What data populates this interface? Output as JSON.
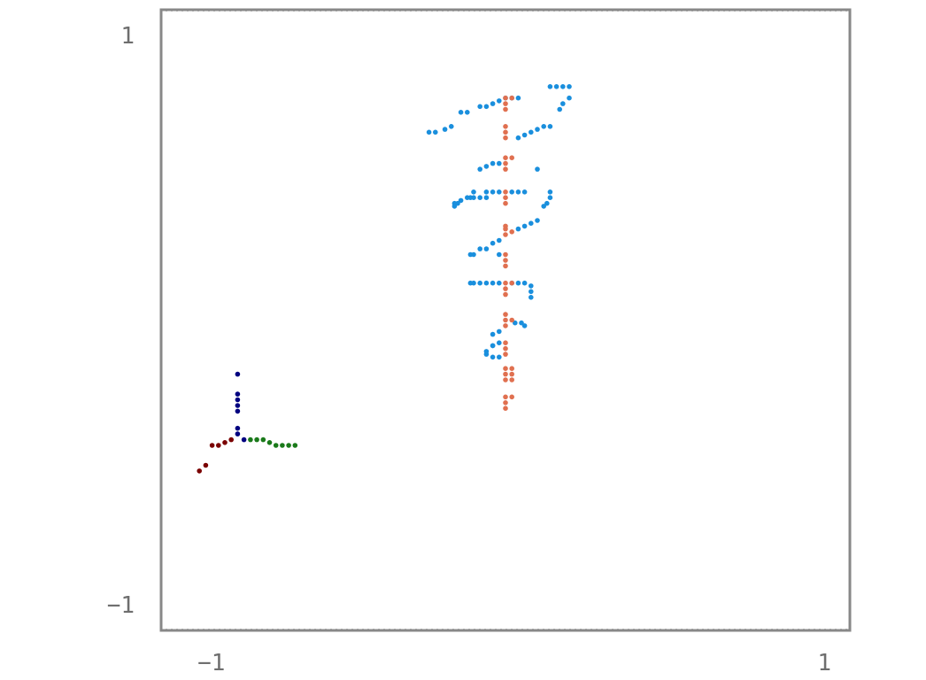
{
  "chart_data": {
    "type": "scatter",
    "title": "",
    "xlabel": "",
    "ylabel": "",
    "xlim": [
      -1.08,
      1.08
    ],
    "ylim": [
      -1.09,
      1.09
    ],
    "xticks": [
      {
        "value": -1,
        "label": "−1"
      },
      {
        "value": 1,
        "label": "1"
      }
    ],
    "yticks": [
      {
        "value": 1,
        "label": "1"
      },
      {
        "value": -1,
        "label": "−1"
      }
    ],
    "grid": false,
    "frame_color": "#888888",
    "series": [
      {
        "color": "#1a8fdd",
        "points": [
          [
            0.14,
            0.82
          ],
          [
            0.16,
            0.82
          ],
          [
            0.18,
            0.82
          ],
          [
            0.2,
            0.82
          ],
          [
            0.2,
            0.78
          ],
          [
            0.18,
            0.76
          ],
          [
            0.17,
            0.74
          ],
          [
            0.0,
            0.78
          ],
          [
            0.02,
            0.78
          ],
          [
            0.04,
            0.78
          ],
          [
            -0.02,
            0.77
          ],
          [
            -0.04,
            0.76
          ],
          [
            -0.06,
            0.75
          ],
          [
            -0.08,
            0.75
          ],
          [
            -0.12,
            0.73
          ],
          [
            -0.14,
            0.73
          ],
          [
            -0.17,
            0.68
          ],
          [
            -0.19,
            0.67
          ],
          [
            -0.22,
            0.66
          ],
          [
            -0.24,
            0.66
          ],
          [
            0.14,
            0.68
          ],
          [
            0.12,
            0.68
          ],
          [
            0.1,
            0.67
          ],
          [
            0.08,
            0.66
          ],
          [
            0.06,
            0.65
          ],
          [
            0.04,
            0.64
          ],
          [
            -0.02,
            0.55
          ],
          [
            -0.04,
            0.55
          ],
          [
            -0.06,
            0.54
          ],
          [
            -0.08,
            0.53
          ],
          [
            0.1,
            0.53
          ],
          [
            -0.02,
            0.45
          ],
          [
            -0.04,
            0.45
          ],
          [
            -0.06,
            0.45
          ],
          [
            -0.1,
            0.45
          ],
          [
            -0.11,
            0.43
          ],
          [
            -0.12,
            0.43
          ],
          [
            -0.14,
            0.42
          ],
          [
            -0.15,
            0.41
          ],
          [
            -0.16,
            0.41
          ],
          [
            -0.16,
            0.4
          ],
          [
            -0.08,
            0.43
          ],
          [
            -0.1,
            0.43
          ],
          [
            -0.06,
            0.43
          ],
          [
            0.02,
            0.45
          ],
          [
            0.04,
            0.45
          ],
          [
            0.06,
            0.45
          ],
          [
            0.14,
            0.45
          ],
          [
            0.14,
            0.43
          ],
          [
            0.13,
            0.41
          ],
          [
            0.12,
            0.4
          ],
          [
            0.06,
            0.33
          ],
          [
            0.08,
            0.34
          ],
          [
            0.1,
            0.35
          ],
          [
            0.04,
            0.32
          ],
          [
            -0.02,
            0.28
          ],
          [
            -0.04,
            0.27
          ],
          [
            -0.06,
            0.25
          ],
          [
            -0.08,
            0.25
          ],
          [
            -0.1,
            0.23
          ],
          [
            -0.11,
            0.23
          ],
          [
            -0.02,
            0.23
          ],
          [
            -0.11,
            0.13
          ],
          [
            -0.1,
            0.13
          ],
          [
            -0.08,
            0.13
          ],
          [
            -0.06,
            0.13
          ],
          [
            -0.04,
            0.13
          ],
          [
            -0.02,
            0.13
          ],
          [
            0.02,
            0.13
          ],
          [
            0.04,
            0.13
          ],
          [
            0.06,
            0.13
          ],
          [
            0.08,
            0.12
          ],
          [
            0.08,
            0.1
          ],
          [
            0.08,
            0.08
          ],
          [
            0.03,
            -0.01
          ],
          [
            0.05,
            -0.01
          ],
          [
            0.06,
            -0.02
          ],
          [
            -0.02,
            -0.04
          ],
          [
            -0.04,
            -0.05
          ],
          [
            -0.02,
            -0.08
          ],
          [
            -0.04,
            -0.09
          ],
          [
            -0.06,
            -0.11
          ],
          [
            -0.06,
            -0.12
          ],
          [
            -0.04,
            -0.13
          ],
          [
            -0.02,
            -0.13
          ],
          [
            -0.04,
            -0.09
          ]
        ]
      },
      {
        "color": "#e07050",
        "points": [
          [
            0.0,
            0.78
          ],
          [
            0.0,
            0.76
          ],
          [
            0.0,
            0.74
          ],
          [
            0.02,
            0.78
          ],
          [
            0.0,
            0.68
          ],
          [
            0.0,
            0.66
          ],
          [
            0.0,
            0.64
          ],
          [
            0.0,
            0.57
          ],
          [
            0.02,
            0.57
          ],
          [
            0.0,
            0.55
          ],
          [
            0.0,
            0.53
          ],
          [
            0.0,
            0.45
          ],
          [
            0.0,
            0.43
          ],
          [
            0.0,
            0.41
          ],
          [
            0.0,
            0.33
          ],
          [
            0.0,
            0.32
          ],
          [
            0.02,
            0.31
          ],
          [
            0.0,
            0.3
          ],
          [
            0.0,
            0.23
          ],
          [
            0.0,
            0.21
          ],
          [
            0.0,
            0.19
          ],
          [
            0.0,
            0.13
          ],
          [
            0.02,
            0.13
          ],
          [
            0.0,
            0.11
          ],
          [
            0.0,
            0.09
          ],
          [
            0.0,
            0.02
          ],
          [
            0.0,
            0.0
          ],
          [
            0.02,
            0.0
          ],
          [
            0.0,
            -0.02
          ],
          [
            0.0,
            -0.08
          ],
          [
            0.0,
            -0.1
          ],
          [
            0.0,
            -0.12
          ],
          [
            0.0,
            -0.17
          ],
          [
            0.02,
            -0.17
          ],
          [
            0.0,
            -0.19
          ],
          [
            0.02,
            -0.19
          ],
          [
            0.0,
            -0.21
          ],
          [
            0.02,
            -0.21
          ],
          [
            0.0,
            -0.27
          ],
          [
            0.02,
            -0.27
          ],
          [
            0.0,
            -0.29
          ],
          [
            0.0,
            -0.31
          ]
        ]
      },
      {
        "color": "#000080",
        "points": [
          [
            -0.84,
            -0.19
          ],
          [
            -0.84,
            -0.26
          ],
          [
            -0.84,
            -0.28
          ],
          [
            -0.84,
            -0.3
          ],
          [
            -0.84,
            -0.32
          ],
          [
            -0.84,
            -0.38
          ],
          [
            -0.84,
            -0.4
          ],
          [
            -0.82,
            -0.42
          ]
        ]
      },
      {
        "color": "#1a7a1a",
        "points": [
          [
            -0.8,
            -0.42
          ],
          [
            -0.78,
            -0.42
          ],
          [
            -0.76,
            -0.42
          ],
          [
            -0.74,
            -0.43
          ],
          [
            -0.72,
            -0.44
          ],
          [
            -0.7,
            -0.44
          ],
          [
            -0.68,
            -0.44
          ],
          [
            -0.66,
            -0.44
          ]
        ]
      },
      {
        "color": "#7a0000",
        "points": [
          [
            -0.86,
            -0.42
          ],
          [
            -0.88,
            -0.43
          ],
          [
            -0.9,
            -0.44
          ],
          [
            -0.92,
            -0.44
          ],
          [
            -0.94,
            -0.51
          ],
          [
            -0.96,
            -0.53
          ]
        ]
      }
    ]
  }
}
